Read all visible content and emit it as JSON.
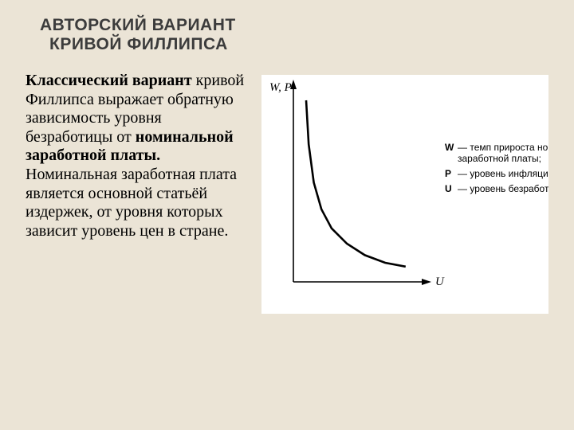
{
  "title": {
    "line1": "АВТОРСКИЙ ВАРИАНТ",
    "line2": "КРИВОЙ ФИЛЛИПСА",
    "fontsize": 21,
    "font_family": "Trebuchet MS",
    "font_weight": 700,
    "color": "#3c3c3c"
  },
  "body": {
    "fontsize": 20,
    "font_family": "Georgia",
    "span1_bold": "Классический вариант",
    "span2": " кривой Филлипса выражает обратную зависимость уровня безработицы от ",
    "span3_bold": "номинальной заработной платы.",
    "span4": " Номинальная заработная плата является основной статьёй издержек, от уровня которых зависит уровень цен в стране."
  },
  "chart": {
    "type": "line",
    "background_color": "#ffffff",
    "axis_color": "#000000",
    "curve_color": "#000000",
    "curve_width": 2.6,
    "y_label": "W, P",
    "x_label": "U",
    "label_font": "italic 14px serif",
    "xlim": [
      0,
      100
    ],
    "ylim": [
      0,
      100
    ],
    "curve_points": [
      {
        "x": 10,
        "y": 95
      },
      {
        "x": 12,
        "y": 72
      },
      {
        "x": 16,
        "y": 52
      },
      {
        "x": 22,
        "y": 38
      },
      {
        "x": 30,
        "y": 28
      },
      {
        "x": 42,
        "y": 20
      },
      {
        "x": 56,
        "y": 14
      },
      {
        "x": 72,
        "y": 10
      },
      {
        "x": 88,
        "y": 8
      }
    ],
    "legend": [
      {
        "symbol": "W",
        "text": "— темп прироста номинальной заработной платы;"
      },
      {
        "symbol": "P",
        "text": "— уровень инфляции;"
      },
      {
        "symbol": "U",
        "text": "— уровень безработицы в %"
      }
    ],
    "legend_fontsize": 12
  },
  "page_background": "#ebe4d6"
}
